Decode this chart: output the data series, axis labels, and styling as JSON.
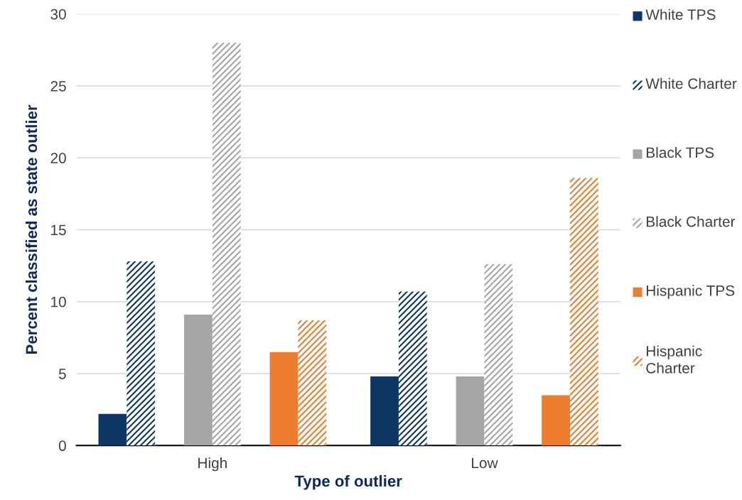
{
  "chart_data": {
    "type": "bar",
    "xlabel": "Type of outlier",
    "ylabel": "Percent classified as state outlier",
    "categories": [
      "High",
      "Low"
    ],
    "series": [
      {
        "name": "White TPS",
        "color": "#0e3766",
        "values": [
          2.2,
          4.8
        ]
      },
      {
        "name": "White Charter",
        "color": "#0e3766",
        "values": [
          12.8,
          10.7
        ]
      },
      {
        "name": "Black TPS",
        "color": "#a5a5a5",
        "values": [
          9.1,
          4.8
        ]
      },
      {
        "name": "Black Charter",
        "color": "#a5a5a5",
        "values": [
          28.0,
          12.6
        ]
      },
      {
        "name": "Hispanic TPS",
        "color": "#ed7d31",
        "values": [
          6.5,
          3.5
        ]
      },
      {
        "name": "Hispanic Charter",
        "color": "#ed7d31",
        "values": [
          8.7,
          18.6
        ]
      }
    ],
    "ylim": [
      0,
      30
    ],
    "yticks": [
      0,
      5,
      10,
      15,
      20,
      25,
      30
    ],
    "grid": "y",
    "legend": "right"
  }
}
